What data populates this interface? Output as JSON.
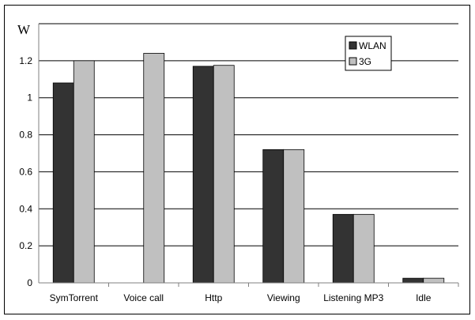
{
  "chart_data": {
    "type": "bar",
    "title": "",
    "xlabel": "",
    "ylabel": "W",
    "ylim": [
      0,
      1.4
    ],
    "yticks": [
      "0",
      "0.2",
      "0.4",
      "0.6",
      "0.8",
      "1",
      "1.2"
    ],
    "grid": true,
    "legend_position": "top-right",
    "categories": [
      "SymTorrent",
      "Voice call",
      "Http",
      "Viewing",
      "Listening MP3",
      "Idle"
    ],
    "series": [
      {
        "name": "WLAN",
        "color": "#333333",
        "values": [
          1.08,
          0,
          1.17,
          0.72,
          0.37,
          0.025
        ]
      },
      {
        "name": "3G",
        "color": "#c0c0c0",
        "values": [
          1.2,
          1.24,
          1.175,
          0.72,
          0.37,
          0.025
        ]
      }
    ]
  }
}
